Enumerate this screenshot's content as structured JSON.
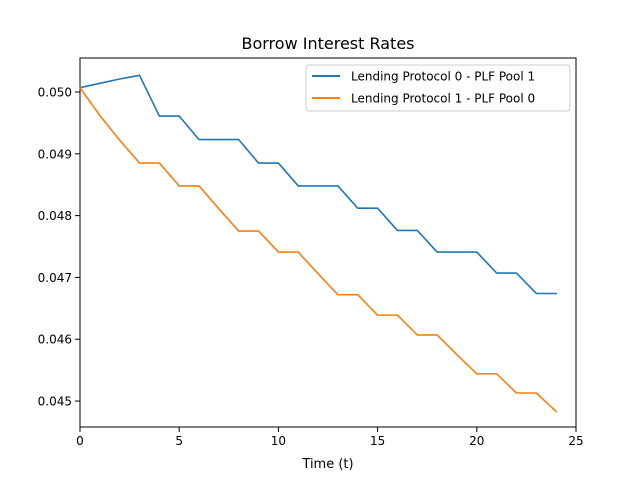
{
  "chart_data": {
    "type": "line",
    "title": "Borrow Interest Rates",
    "xlabel": "Time (t)",
    "ylabel": "",
    "xlim": [
      0,
      25
    ],
    "ylim": [
      0.04458,
      0.05055
    ],
    "xticks": [
      0,
      5,
      10,
      15,
      20,
      25
    ],
    "xtick_labels": [
      "0",
      "5",
      "10",
      "15",
      "20",
      "25"
    ],
    "yticks": [
      0.045,
      0.046,
      0.047,
      0.048,
      0.049,
      0.05
    ],
    "ytick_labels": [
      "0.045",
      "0.046",
      "0.047",
      "0.048",
      "0.049",
      "0.050"
    ],
    "grid": false,
    "legend_position": "top-right",
    "series": [
      {
        "name": "Lending Protocol 0 - PLF Pool 1",
        "color": "#1f77b4",
        "x": [
          0,
          1,
          2,
          3,
          4,
          5,
          6,
          7,
          8,
          9,
          10,
          11,
          12,
          13,
          14,
          15,
          16,
          17,
          18,
          19,
          20,
          21,
          22,
          23,
          24
        ],
        "y": [
          0.05007,
          0.05014,
          0.05021,
          0.05027,
          0.04961,
          0.04961,
          0.04923,
          0.04923,
          0.04923,
          0.04885,
          0.04885,
          0.04848,
          0.04848,
          0.04848,
          0.04812,
          0.04812,
          0.04776,
          0.04776,
          0.04741,
          0.04741,
          0.04741,
          0.04707,
          0.04707,
          0.04674,
          0.04674
        ]
      },
      {
        "name": "Lending Protocol 1 - PLF Pool 0",
        "color": "#ff7f0e",
        "x": [
          0,
          1,
          2,
          3,
          4,
          5,
          6,
          7,
          8,
          9,
          10,
          11,
          12,
          13,
          14,
          15,
          16,
          17,
          18,
          19,
          20,
          21,
          22,
          23,
          24
        ],
        "y": [
          0.05007,
          0.04962,
          0.04922,
          0.04885,
          0.04885,
          0.04848,
          0.04848,
          0.04811,
          0.04775,
          0.04775,
          0.04741,
          0.04741,
          0.04706,
          0.04672,
          0.04672,
          0.04639,
          0.04639,
          0.04607,
          0.04607,
          0.04575,
          0.04544,
          0.04544,
          0.04513,
          0.04513,
          0.04483
        ]
      }
    ]
  }
}
